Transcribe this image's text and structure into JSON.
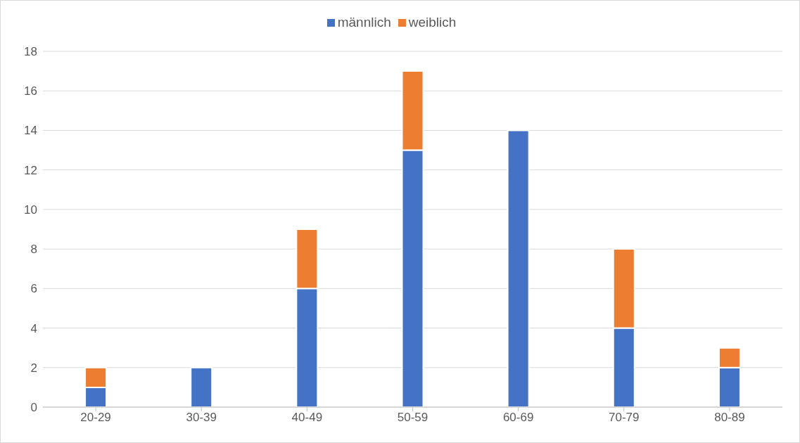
{
  "chart_data": {
    "type": "bar",
    "stacked": true,
    "categories": [
      "20-29",
      "30-39",
      "40-49",
      "50-59",
      "60-69",
      "70-79",
      "80-89"
    ],
    "series": [
      {
        "name": "männlich",
        "color": "#4472c4",
        "values": [
          1,
          2,
          6,
          13,
          14,
          4,
          2
        ]
      },
      {
        "name": "weiblich",
        "color": "#ed7d31",
        "values": [
          1,
          null,
          3,
          4,
          null,
          4,
          1
        ]
      }
    ],
    "ylim": [
      0,
      18
    ],
    "yticks": [
      0,
      2,
      4,
      6,
      8,
      10,
      12,
      14,
      16,
      18
    ],
    "grid": "y",
    "legend": "top"
  }
}
